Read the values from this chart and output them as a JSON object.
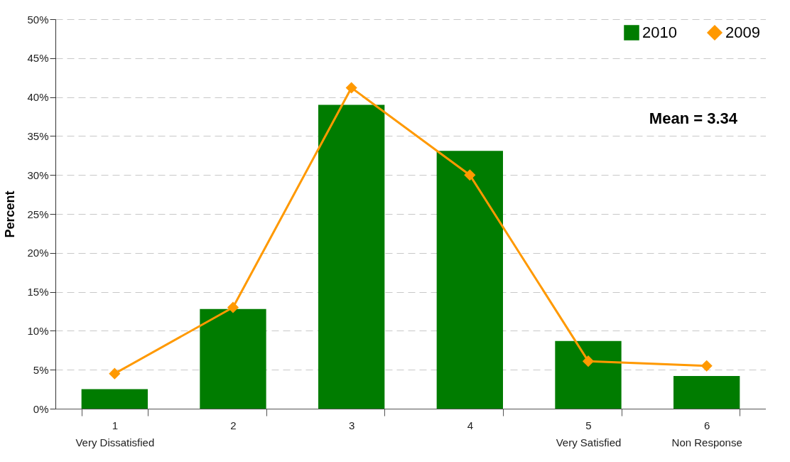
{
  "chart_data": {
    "type": "bar",
    "ylabel": "Percent",
    "categories": [
      "1\nVery Dissatisfied",
      "2",
      "3",
      "4",
      "5\nVery Satisfied",
      "6\nNon Response"
    ],
    "series": [
      {
        "name": "2010",
        "color": "#007c00",
        "values": [
          2.5,
          12.8,
          39.0,
          33.1,
          8.7,
          4.2
        ]
      },
      {
        "name": "2009",
        "type": "line",
        "color": "#ff9900",
        "marker": "diamond",
        "values": [
          4.5,
          13.0,
          41.2,
          30.0,
          6.1,
          5.5
        ]
      }
    ],
    "ylim": [
      0,
      50
    ],
    "yticks": [
      {
        "value": 0,
        "label": "0%"
      },
      {
        "value": 5,
        "label": "5%"
      },
      {
        "value": 10,
        "label": "10%"
      },
      {
        "value": 15,
        "label": "15%"
      },
      {
        "value": 20,
        "label": "20%"
      },
      {
        "value": 25,
        "label": "25%"
      },
      {
        "value": 30,
        "label": "30%"
      },
      {
        "value": 35,
        "label": "35%"
      },
      {
        "value": 40,
        "label": "40%"
      },
      {
        "value": 45,
        "label": "45%"
      },
      {
        "value": 50,
        "label": "50%"
      }
    ],
    "grid": "y",
    "legend": "top right",
    "annotations": [
      "Mean = 3.34"
    ]
  }
}
